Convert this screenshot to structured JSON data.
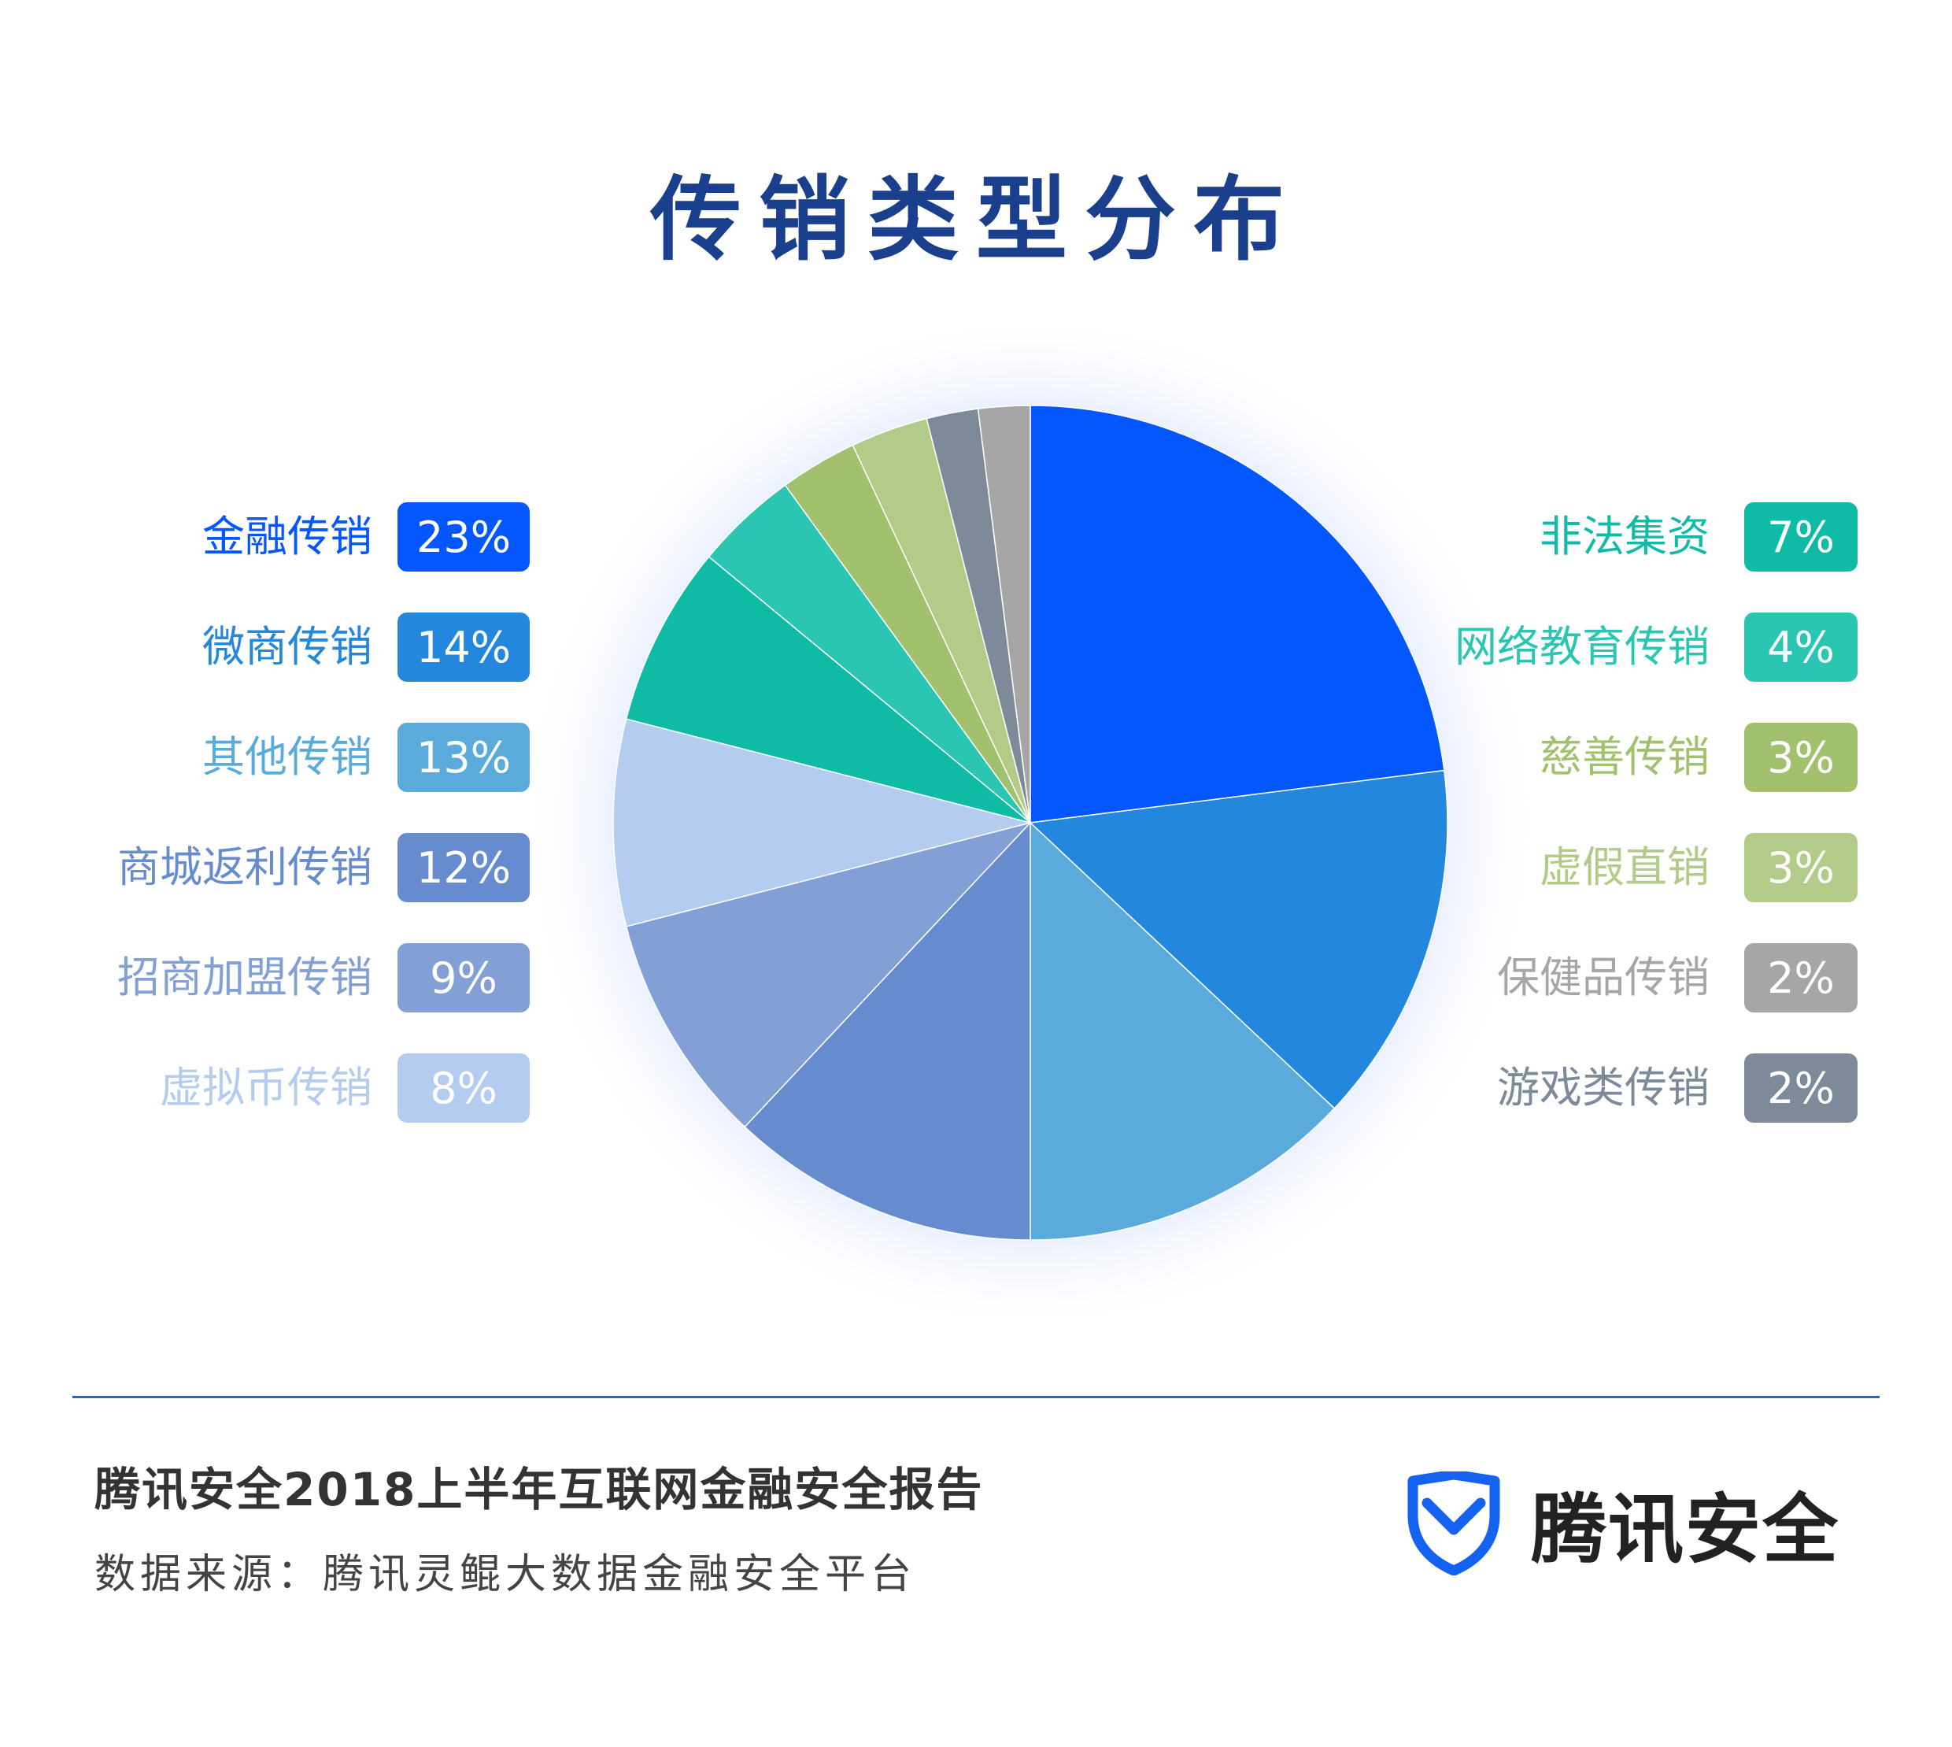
{
  "title": "传销类型分布",
  "chart_data": {
    "type": "pie",
    "title": "传销类型分布",
    "slices": [
      {
        "label": "金融传销",
        "value": 23,
        "display": "23%",
        "color": "#0457ff"
      },
      {
        "label": "微商传销",
        "value": 14,
        "display": "14%",
        "color": "#2287dd"
      },
      {
        "label": "其他传销",
        "value": 13,
        "display": "13%",
        "color": "#5aabdc"
      },
      {
        "label": "商城返利传销",
        "value": 12,
        "display": "12%",
        "color": "#668bcf"
      },
      {
        "label": "招商加盟传销",
        "value": 9,
        "display": "9%",
        "color": "#82a0d5"
      },
      {
        "label": "虚拟币传销",
        "value": 8,
        "display": "8%",
        "color": "#b3ccf0"
      },
      {
        "label": "非法集资",
        "value": 7,
        "display": "7%",
        "color": "#10bba6"
      },
      {
        "label": "网络教育传销",
        "value": 4,
        "display": "4%",
        "color": "#2ac6b2"
      },
      {
        "label": "慈善传销",
        "value": 3,
        "display": "3%",
        "color": "#a2c16e"
      },
      {
        "label": "虚假直销",
        "value": 3,
        "display": "3%",
        "color": "#b2cb88"
      },
      {
        "label": "游戏类传销",
        "value": 2,
        "display": "2%",
        "color": "#7d8a99"
      },
      {
        "label": "保健品传销",
        "value": 2,
        "display": "2%",
        "color": "#a6a6a6"
      }
    ],
    "legend_left": [
      "金融传销",
      "微商传销",
      "其他传销",
      "商城返利传销",
      "招商加盟传销",
      "虚拟币传销"
    ],
    "legend_right": [
      "非法集资",
      "网络教育传销",
      "慈善传销",
      "虚假直销",
      "保健品传销",
      "游戏类传销"
    ]
  },
  "footer": {
    "report_title": "腾讯安全2018上半年互联网金融安全报告",
    "source": "数据来源：腾讯灵鲲大数据金融安全平台",
    "brand_name": "腾讯安全",
    "brand_color": "#1463f0"
  }
}
